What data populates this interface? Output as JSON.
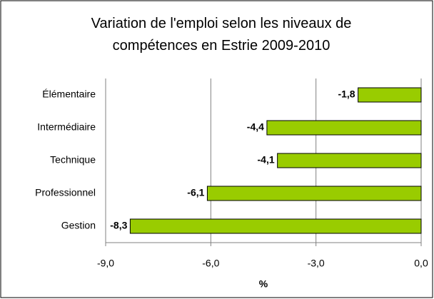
{
  "chart_data": {
    "type": "bar",
    "orientation": "horizontal",
    "title": "Variation de l'emploi selon les niveaux de compétences en Estrie 2009-2010",
    "xlabel": "%",
    "categories": [
      "Élémentaire",
      "Intermédiaire",
      "Technique",
      "Professionnel",
      "Gestion"
    ],
    "values": [
      -1.8,
      -4.4,
      -4.1,
      -6.1,
      -8.3
    ],
    "value_labels": [
      "-1,8",
      "-4,4",
      "-4,1",
      "-6,1",
      "-8,3"
    ],
    "color": "#99cc00",
    "xlim": [
      -9,
      0
    ],
    "xticks": [
      {
        "value": -9,
        "label": "-9,0"
      },
      {
        "value": -6,
        "label": "-6,0"
      },
      {
        "value": -3,
        "label": "-3,0"
      },
      {
        "value": 0,
        "label": "0,0"
      }
    ],
    "grid": true
  }
}
